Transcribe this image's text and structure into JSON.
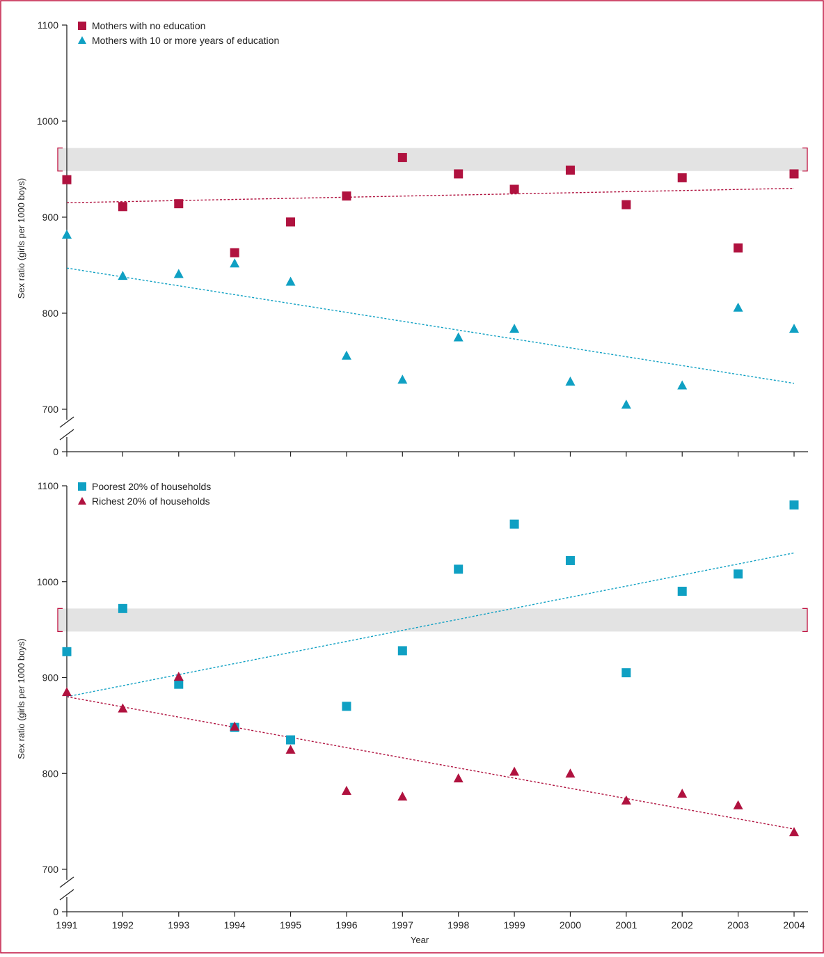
{
  "frame_color": "#c0103f",
  "band_color": "#e3e3e3",
  "bracket_color": "#c0103f",
  "colors": {
    "crimson": "#b0123f",
    "teal": "#0fa0c3"
  },
  "xlabel": "Year",
  "x_ticks": [
    1991,
    1992,
    1993,
    1994,
    1995,
    1996,
    1997,
    1998,
    1999,
    2000,
    2001,
    2002,
    2003,
    2004
  ],
  "chart_data": [
    {
      "type": "scatter",
      "ylabel": "Sex ratio (girls per 1000 boys)",
      "y_ticks": [
        0,
        700,
        800,
        900,
        1000,
        1100
      ],
      "y_axis_break": true,
      "reference_band": [
        948,
        972
      ],
      "legend": "top-left",
      "grid": false,
      "series": [
        {
          "name": "Mothers with no education",
          "color": "crimson",
          "marker": "square-icon",
          "x": [
            1991,
            1992,
            1993,
            1994,
            1995,
            1996,
            1997,
            1998,
            1999,
            2000,
            2001,
            2002,
            2003,
            2004
          ],
          "y": [
            939,
            911,
            914,
            863,
            895,
            922,
            962,
            945,
            929,
            949,
            913,
            941,
            868,
            945
          ],
          "trend": [
            915,
            930
          ]
        },
        {
          "name": "Mothers with 10 or more years of education",
          "color": "teal",
          "marker": "triangle-icon",
          "x": [
            1991,
            1992,
            1993,
            1994,
            1995,
            1996,
            1997,
            1998,
            1999,
            2000,
            2001,
            2002,
            2003,
            2004
          ],
          "y": [
            882,
            839,
            841,
            852,
            833,
            756,
            731,
            775,
            784,
            729,
            705,
            725,
            806,
            784
          ],
          "trend": [
            847,
            727
          ]
        }
      ]
    },
    {
      "type": "scatter",
      "ylabel": "Sex ratio (girls per 1000 boys)",
      "y_ticks": [
        0,
        700,
        800,
        900,
        1000,
        1100
      ],
      "y_axis_break": true,
      "reference_band": [
        948,
        972
      ],
      "legend": "top-left",
      "grid": false,
      "series": [
        {
          "name": "Poorest 20% of households",
          "color": "teal",
          "marker": "square-icon",
          "x": [
            1991,
            1992,
            1993,
            1994,
            1995,
            1996,
            1997,
            1998,
            1999,
            2000,
            2001,
            2002,
            2003,
            2004
          ],
          "y": [
            927,
            972,
            893,
            848,
            835,
            870,
            928,
            1013,
            1060,
            1022,
            905,
            990,
            1008,
            1080
          ],
          "trend": [
            880,
            1030
          ]
        },
        {
          "name": "Richest 20% of households",
          "color": "crimson",
          "marker": "triangle-icon",
          "x": [
            1991,
            1992,
            1993,
            1994,
            1995,
            1996,
            1997,
            1998,
            1999,
            2000,
            2001,
            2002,
            2003,
            2004
          ],
          "y": [
            885,
            868,
            901,
            849,
            825,
            782,
            776,
            795,
            802,
            800,
            772,
            779,
            767,
            739
          ],
          "trend": [
            880,
            742
          ]
        }
      ]
    }
  ]
}
